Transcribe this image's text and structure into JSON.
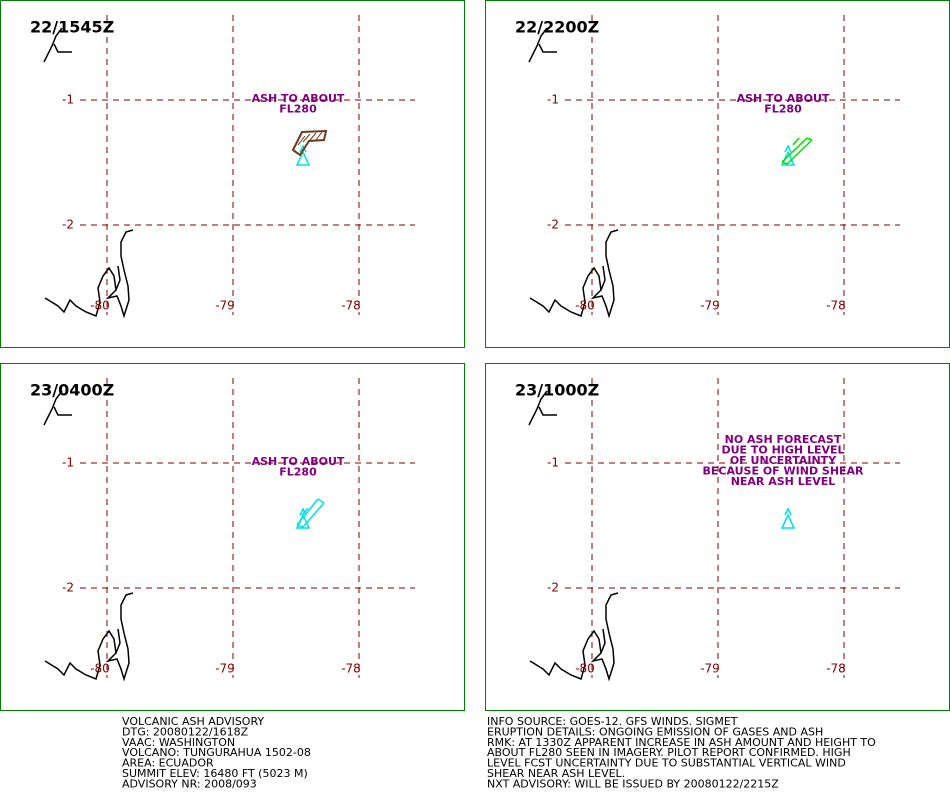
{
  "panels": [
    {
      "time": "22/1545Z",
      "lat_labels": [
        "-1",
        "-2"
      ],
      "lon_labels": [
        "-80",
        "-79",
        "-78"
      ],
      "annotation": [
        "ASH TO ABOUT",
        "FL280"
      ]
    },
    {
      "time": "22/2200Z",
      "lat_labels": [
        "-1",
        "-2"
      ],
      "lon_labels": [
        "-80",
        "-79",
        "-78"
      ],
      "annotation": [
        "ASH TO ABOUT",
        "FL280"
      ]
    },
    {
      "time": "23/0400Z",
      "lat_labels": [
        "-1",
        "-2"
      ],
      "lon_labels": [
        "-80",
        "-79",
        "-78"
      ],
      "annotation": [
        "ASH TO ABOUT",
        "FL280"
      ]
    },
    {
      "time": "23/1000Z",
      "lat_labels": [
        "-1",
        "-2"
      ],
      "lon_labels": [
        "-80",
        "-79",
        "-78"
      ],
      "annotation": [
        "NO ASH FORECAST",
        "DUE TO HIGH LEVEL",
        "OF UNCERTAINTY",
        "BECAUSE OF WIND SHEAR",
        "NEAR ASH LEVEL"
      ]
    }
  ],
  "footer_left": [
    "VOLCANIC ASH ADVISORY",
    "DTG: 20080122/1618Z",
    "VAAC: WASHINGTON",
    "VOLCANO: TUNGURAHUA 1502-08",
    "AREA: ECUADOR",
    "SUMMIT ELEV: 16480 FT (5023 M)",
    "ADVISORY NR: 2008/093"
  ],
  "footer_right": [
    "INFO SOURCE: GOES-12. GFS WINDS. SIGMET",
    "ERUPTION DETAILS: ONGOING EMISSION OF GASES AND ASH",
    "RMK: AT 1330Z APPARENT INCREASE IN ASH AMOUNT AND HEIGHT TO",
    "ABOUT FL280 SEEN IN IMAGERY. PILOT REPORT CONFIRMED. HIGH",
    "LEVEL FCST UNCERTAINTY DUE TO SUBSTANTIAL VERTICAL WIND",
    "SHEAR NEAR ASH LEVEL.",
    "NXT ADVISORY: WILL BE ISSUED BY 20080122/2215Z"
  ]
}
